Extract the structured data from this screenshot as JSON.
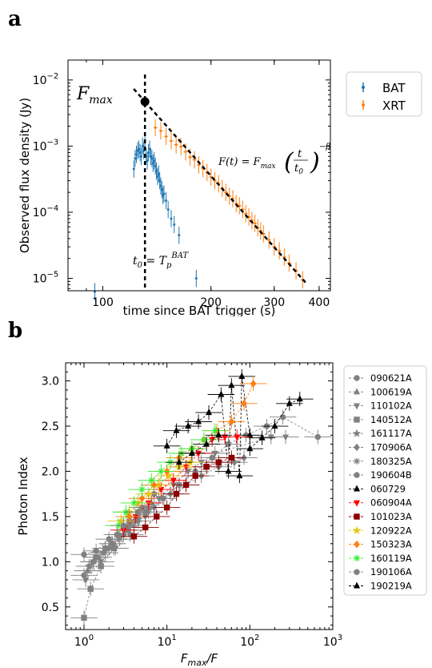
{
  "chart_data": [
    {
      "panel_label": "a",
      "type": "scatter",
      "xlabel": "time since BAT trigger (s)",
      "ylabel": "Observed flux density (Jy)",
      "xscale": "log",
      "yscale": "log",
      "xlim": [
        80,
        430
      ],
      "ylim": [
        6.5e-06,
        0.02
      ],
      "x_ticks": [
        {
          "v": 100,
          "label": "100"
        },
        {
          "v": 200,
          "label": "200"
        },
        {
          "v": 300,
          "label": "300"
        },
        {
          "v": 400,
          "label": "400"
        }
      ],
      "y_ticks": [
        {
          "v": 0.01,
          "base": "10",
          "exp": "−2"
        },
        {
          "v": 0.001,
          "base": "10",
          "exp": "−3"
        },
        {
          "v": 0.0001,
          "base": "10",
          "exp": "−4"
        },
        {
          "v": 1e-05,
          "base": "10",
          "exp": "−5"
        }
      ],
      "legend": {
        "placement": "outside-right",
        "entries": [
          {
            "label": "BAT",
            "color": "#1f77b4"
          },
          {
            "label": "XRT",
            "color": "#ff7f0e"
          }
        ]
      },
      "annotations": {
        "fmax": "F",
        "fmax_sub": "max",
        "formula_lhs": "F(t) = F",
        "formula_sub": "max",
        "formula_t": "t",
        "formula_t0": "t",
        "formula_t0_sub": "0",
        "formula_exp": "−β",
        "t0_lhs": "t",
        "t0_lhs_sub": "0",
        "t0_rhs": "= T",
        "t0_rhs_sub": "p",
        "t0_rhs_sup": "BAT"
      },
      "peak": {
        "t": 131,
        "flux": 0.0047
      },
      "decay_line": {
        "t": [
          131,
          370
        ],
        "flux": [
          0.0047,
          8.2e-06
        ]
      },
      "series": [
        {
          "name": "BAT",
          "color": "#1f77b4",
          "x": [
            95,
            122,
            123,
            124,
            125,
            126,
            127,
            128,
            129,
            130,
            131,
            132,
            133,
            134,
            135,
            136,
            137,
            138,
            139,
            140,
            141,
            142,
            143,
            144,
            145,
            146,
            147,
            148,
            150,
            152,
            155,
            158,
            163,
            182
          ],
          "y": [
            6.3e-06,
            0.00045,
            0.00065,
            0.00075,
            0.00085,
            0.0009,
            0.0008,
            0.0007,
            0.001,
            0.00085,
            0.0012,
            0.0007,
            0.0006,
            0.0008,
            0.0009,
            0.0007,
            0.00065,
            0.00055,
            0.0006,
            0.0005,
            0.00042,
            0.00035,
            0.00038,
            0.0003,
            0.00025,
            0.00022,
            0.00018,
            0.00019,
            0.00015,
            0.00011,
            8e-05,
            6.5e-05,
            4.5e-05,
            1e-05
          ]
        },
        {
          "name": "XRT",
          "color": "#ff7f0e",
          "x": [
            140,
            145,
            150,
            155,
            160,
            165,
            170,
            175,
            180,
            185,
            190,
            195,
            200,
            205,
            210,
            215,
            220,
            225,
            230,
            235,
            240,
            245,
            250,
            255,
            260,
            265,
            270,
            275,
            280,
            290,
            300,
            310,
            320,
            330,
            345,
            360
          ],
          "y": [
            0.0019,
            0.0017,
            0.0014,
            0.0012,
            0.00105,
            0.00098,
            0.00082,
            0.00068,
            0.00062,
            0.00052,
            0.00046,
            0.0004,
            0.00034,
            0.0003,
            0.00027,
            0.00023,
            0.0002,
            0.000175,
            0.00016,
            0.000135,
            0.000125,
            0.00011,
            9.5e-05,
            8.5e-05,
            7.5e-05,
            6.8e-05,
            5.8e-05,
            5.2e-05,
            4.7e-05,
            3.8e-05,
            3e-05,
            2.6e-05,
            2.1e-05,
            1.7e-05,
            1.3e-05,
            9.5e-06
          ]
        }
      ]
    },
    {
      "panel_label": "b",
      "type": "scatter",
      "xlabel": "F",
      "xlabel_sub": "max",
      "xlabel_rest": "/F",
      "ylabel": "Photon Index",
      "xscale": "log",
      "xlim": [
        0.6,
        1000
      ],
      "ylim": [
        0.25,
        3.2
      ],
      "x_ticks": [
        {
          "v": 1,
          "base": "10",
          "exp": "0"
        },
        {
          "v": 10,
          "base": "10",
          "exp": "1"
        },
        {
          "v": 100,
          "base": "10",
          "exp": "2"
        },
        {
          "v": 1000,
          "base": "10",
          "exp": "3"
        }
      ],
      "y_ticks": [
        {
          "v": 0.5,
          "label": "0.5"
        },
        {
          "v": 1.0,
          "label": "1.0"
        },
        {
          "v": 1.5,
          "label": "1.5"
        },
        {
          "v": 2.0,
          "label": "2.0"
        },
        {
          "v": 2.5,
          "label": "2.5"
        },
        {
          "v": 3.0,
          "label": "3.0"
        }
      ],
      "legend": {
        "placement": "outside-right"
      },
      "series": [
        {
          "name": "090621A",
          "color": "#808080",
          "marker": "circle",
          "x": [
            1,
            1.3,
            1.8,
            2.5,
            3.5,
            5,
            7
          ],
          "y": [
            0.85,
            1.0,
            1.15,
            1.3,
            1.45,
            1.6,
            1.75
          ]
        },
        {
          "name": "100619A",
          "color": "#808080",
          "marker": "triangle-up",
          "x": [
            1.1,
            1.5,
            2.2,
            3.2,
            4.5,
            6.5
          ],
          "y": [
            0.9,
            1.05,
            1.2,
            1.35,
            1.5,
            1.65
          ]
        },
        {
          "name": "110102A",
          "color": "#808080",
          "marker": "triangle-down",
          "x": [
            1.05,
            1.6,
            2.4,
            3.6,
            5.5,
            8,
            12,
            18,
            26,
            38,
            180,
            270
          ],
          "y": [
            0.8,
            1.0,
            1.15,
            1.3,
            1.5,
            1.7,
            1.85,
            2.0,
            2.1,
            2.2,
            2.38,
            2.38
          ]
        },
        {
          "name": "140512A",
          "color": "#808080",
          "marker": "square",
          "x": [
            1,
            1.2,
            1.6,
            2.3,
            3.4
          ],
          "y": [
            0.38,
            0.7,
            0.95,
            1.15,
            1.35
          ]
        },
        {
          "name": "161117A",
          "color": "#808080",
          "marker": "star",
          "x": [
            1.15,
            1.7,
            2.6,
            4,
            6
          ],
          "y": [
            0.95,
            1.1,
            1.3,
            1.45,
            1.6
          ]
        },
        {
          "name": "170906A",
          "color": "#808080",
          "marker": "diamond",
          "x": [
            1.3,
            2,
            3,
            4.5,
            7,
            11,
            17,
            26,
            42,
            65,
            85
          ],
          "y": [
            1.0,
            1.15,
            1.3,
            1.45,
            1.6,
            1.75,
            1.85,
            1.95,
            2.05,
            2.1,
            2.15
          ]
        },
        {
          "name": "180325A",
          "color": "#808080",
          "marker": "asterisk",
          "x": [
            1.2,
            1.8,
            2.7,
            4,
            6,
            9,
            14
          ],
          "y": [
            0.95,
            1.1,
            1.25,
            1.4,
            1.55,
            1.7,
            1.85
          ]
        },
        {
          "name": "190604B",
          "color": "#808080",
          "marker": "circle",
          "x": [
            1.4,
            2.2,
            3.5,
            5.5,
            9,
            14,
            22,
            35,
            55,
            90,
            160,
            250,
            660
          ],
          "y": [
            1.05,
            1.2,
            1.4,
            1.55,
            1.7,
            1.85,
            2.0,
            2.15,
            2.3,
            2.4,
            2.5,
            2.6,
            2.38
          ]
        },
        {
          "name": "060729",
          "color": "#000000",
          "marker": "triangle-up",
          "x": [
            10,
            13,
            18,
            24,
            32,
            45,
            60,
            80,
            100,
            140,
            200,
            300,
            400,
            55,
            75,
            100
          ],
          "y": [
            2.28,
            2.45,
            2.5,
            2.55,
            2.65,
            2.85,
            2.95,
            3.05,
            2.4,
            2.37,
            2.5,
            2.75,
            2.8,
            2.0,
            1.95,
            2.25
          ]
        },
        {
          "name": "060904A",
          "color": "#ff0000",
          "marker": "triangle-down",
          "x": [
            3,
            4.2,
            6,
            8.5,
            12,
            17,
            24,
            35,
            50,
            70
          ],
          "y": [
            1.35,
            1.5,
            1.65,
            1.8,
            1.9,
            2.05,
            2.2,
            2.35,
            2.38,
            2.38
          ]
        },
        {
          "name": "101023A",
          "color": "#8b0000",
          "marker": "square",
          "x": [
            4,
            5.5,
            7.5,
            10,
            13,
            17,
            22,
            30,
            42,
            60
          ],
          "y": [
            1.28,
            1.38,
            1.5,
            1.6,
            1.75,
            1.85,
            1.95,
            2.05,
            2.1,
            2.15
          ]
        },
        {
          "name": "120922A",
          "color": "#e6c619",
          "marker": "star",
          "x": [
            2.8,
            3.5,
            4.5,
            6,
            8,
            10.5,
            14,
            19
          ],
          "y": [
            1.45,
            1.55,
            1.65,
            1.75,
            1.85,
            1.95,
            2.05,
            2.1
          ]
        },
        {
          "name": "150323A",
          "color": "#ff7f0e",
          "marker": "diamond",
          "x": [
            3.5,
            5,
            7,
            10,
            14,
            20,
            28,
            40,
            60,
            85,
            110
          ],
          "y": [
            1.5,
            1.7,
            1.85,
            2.0,
            2.15,
            2.25,
            2.35,
            2.45,
            2.55,
            2.75,
            2.97
          ]
        },
        {
          "name": "160119A",
          "color": "#33ee33",
          "marker": "asterisk",
          "x": [
            2.6,
            3.2,
            4,
            5,
            6.5,
            8.5,
            11,
            15,
            20,
            28,
            38
          ],
          "y": [
            1.4,
            1.55,
            1.65,
            1.8,
            1.9,
            2.0,
            2.1,
            2.2,
            2.25,
            2.35,
            2.45
          ]
        },
        {
          "name": "190106A",
          "color": "#808080",
          "marker": "circle",
          "x": [
            1,
            1.4,
            2,
            3,
            4.5
          ],
          "y": [
            1.08,
            1.12,
            1.25,
            1.4,
            1.55
          ]
        },
        {
          "name": "190219A",
          "color": "#000000",
          "marker": "triangle-up",
          "x": [
            14,
            20,
            30,
            42
          ],
          "y": [
            2.1,
            2.2,
            2.3,
            2.4
          ]
        }
      ]
    }
  ]
}
